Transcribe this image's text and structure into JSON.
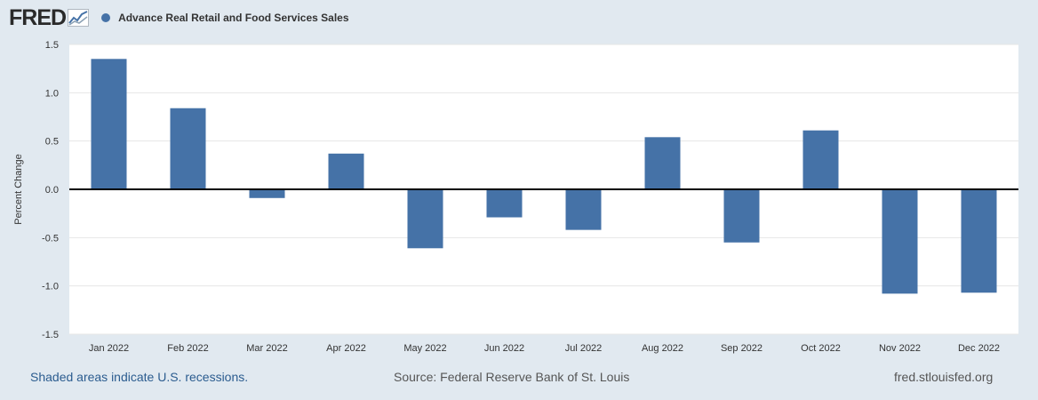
{
  "header": {
    "logo_text": "FRED",
    "logo_icon": "line-chart-icon",
    "series_label": "Advance Real Retail and Food Services Sales",
    "series_color": "#4572a7"
  },
  "footer": {
    "recessions": "Shaded areas indicate U.S. recessions.",
    "source": "Source: Federal Reserve Bank of St. Louis",
    "site": "fred.stlouisfed.org"
  },
  "colors": {
    "bar": "#4572a7",
    "grid": "#e6e6e6",
    "zero_line": "#000000",
    "axis_text": "#333333"
  },
  "chart_data": {
    "type": "bar",
    "title": "Advance Real Retail and Food Services Sales",
    "xlabel": "",
    "ylabel": "Percent Change",
    "ylim": [
      -1.5,
      1.5
    ],
    "yticks": [
      1.5,
      1.0,
      0.5,
      0.0,
      -0.5,
      -1.0,
      -1.5
    ],
    "ytick_labels": [
      "1.5",
      "1.0",
      "0.5",
      "0.0",
      "-0.5",
      "-1.0",
      "-1.5"
    ],
    "grid": true,
    "categories": [
      "Jan 2022",
      "Feb 2022",
      "Mar 2022",
      "Apr 2022",
      "May 2022",
      "Jun 2022",
      "Jul 2022",
      "Aug 2022",
      "Sep 2022",
      "Oct 2022",
      "Nov 2022",
      "Dec 2022"
    ],
    "series": [
      {
        "name": "Advance Real Retail and Food Services Sales",
        "values": [
          1.35,
          0.84,
          -0.09,
          0.37,
          -0.61,
          -0.29,
          -0.42,
          0.54,
          -0.55,
          0.61,
          -1.08,
          -1.07
        ]
      }
    ]
  }
}
